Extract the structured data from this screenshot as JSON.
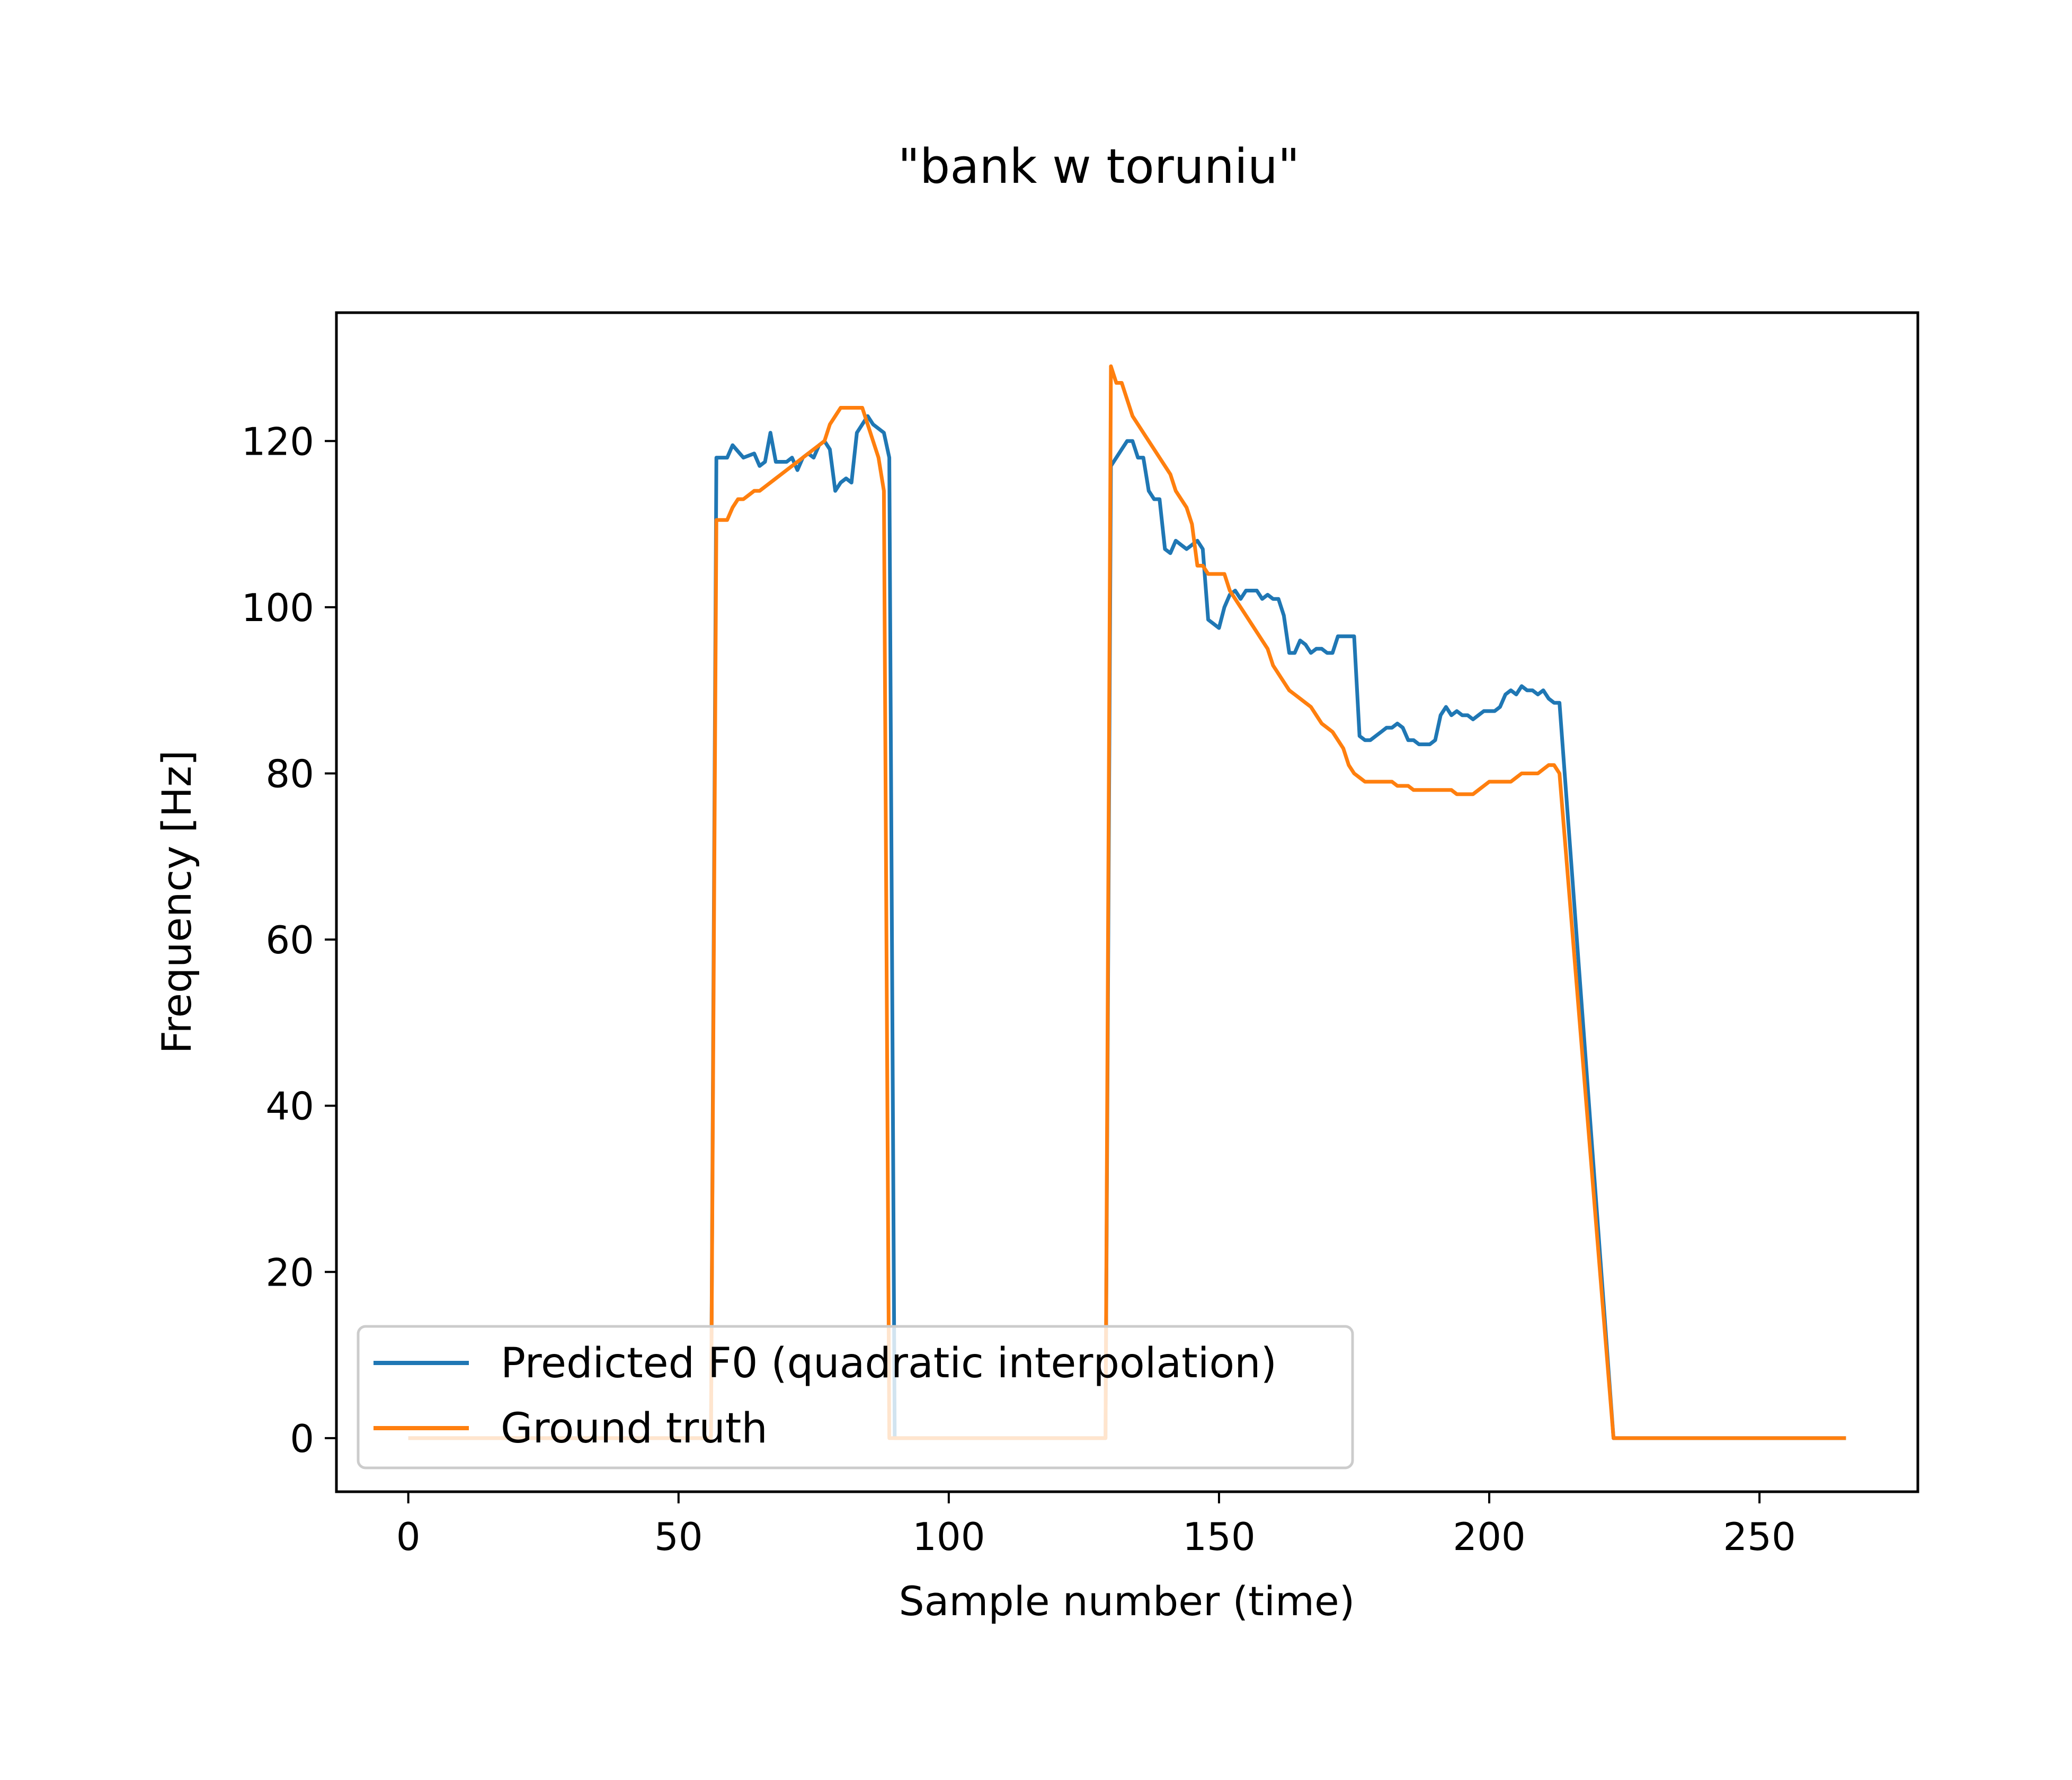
{
  "chart_data": {
    "type": "line",
    "title": "\"bank w toruniu\"",
    "xlabel": "Sample number (time)",
    "ylabel": "Frequency [Hz]",
    "xlim": [
      -13.3,
      279.3
    ],
    "ylim": [
      -6.45,
      135.45
    ],
    "xticks": [
      0,
      50,
      100,
      150,
      200,
      250
    ],
    "yticks": [
      0,
      20,
      40,
      60,
      80,
      100,
      120
    ],
    "grid": false,
    "legend_position": "lower left",
    "series": [
      {
        "name": "Predicted F0 (quadratic interpolation)",
        "color": "#1f77b4",
        "points": [
          [
            0,
            0
          ],
          [
            56,
            0
          ],
          [
            57,
            118
          ],
          [
            59,
            118
          ],
          [
            60,
            119.5
          ],
          [
            62,
            118
          ],
          [
            64,
            118.5
          ],
          [
            65,
            117
          ],
          [
            66,
            117.5
          ],
          [
            67,
            121
          ],
          [
            68,
            117.5
          ],
          [
            70,
            117.5
          ],
          [
            71,
            118
          ],
          [
            72,
            116.5
          ],
          [
            73,
            118
          ],
          [
            74,
            118.5
          ],
          [
            75,
            118
          ],
          [
            76,
            119.5
          ],
          [
            77,
            120
          ],
          [
            78,
            119
          ],
          [
            79,
            114
          ],
          [
            80,
            115
          ],
          [
            81,
            115.5
          ],
          [
            82,
            115
          ],
          [
            83,
            121
          ],
          [
            84,
            122
          ],
          [
            85,
            123
          ],
          [
            86,
            122
          ],
          [
            88,
            121
          ],
          [
            89,
            118
          ],
          [
            90,
            0
          ],
          [
            129,
            0
          ],
          [
            130,
            117
          ],
          [
            131,
            118
          ],
          [
            132,
            119
          ],
          [
            133,
            120
          ],
          [
            134,
            120
          ],
          [
            135,
            118
          ],
          [
            136,
            118
          ],
          [
            137,
            114
          ],
          [
            138,
            113
          ],
          [
            139,
            113
          ],
          [
            140,
            107
          ],
          [
            141,
            106.5
          ],
          [
            142,
            108
          ],
          [
            143,
            107.5
          ],
          [
            144,
            107
          ],
          [
            145,
            107.5
          ],
          [
            146,
            108
          ],
          [
            147,
            107
          ],
          [
            148,
            98.5
          ],
          [
            149,
            98
          ],
          [
            150,
            97.5
          ],
          [
            151,
            100
          ],
          [
            152,
            101.5
          ],
          [
            153,
            102
          ],
          [
            154,
            101
          ],
          [
            155,
            102
          ],
          [
            156,
            102
          ],
          [
            157,
            102
          ],
          [
            158,
            101
          ],
          [
            159,
            101.5
          ],
          [
            160,
            101
          ],
          [
            161,
            101
          ],
          [
            162,
            99
          ],
          [
            163,
            94.5
          ],
          [
            164,
            94.5
          ],
          [
            165,
            96
          ],
          [
            166,
            95.5
          ],
          [
            167,
            94.5
          ],
          [
            168,
            95
          ],
          [
            169,
            95
          ],
          [
            170,
            94.5
          ],
          [
            171,
            94.5
          ],
          [
            172,
            96.5
          ],
          [
            173,
            96.5
          ],
          [
            174,
            96.5
          ],
          [
            175,
            96.5
          ],
          [
            176,
            84.5
          ],
          [
            177,
            84
          ],
          [
            178,
            84
          ],
          [
            179,
            84.5
          ],
          [
            180,
            85
          ],
          [
            181,
            85.5
          ],
          [
            182,
            85.5
          ],
          [
            183,
            86
          ],
          [
            184,
            85.5
          ],
          [
            185,
            84
          ],
          [
            186,
            84
          ],
          [
            187,
            83.5
          ],
          [
            188,
            83.5
          ],
          [
            189,
            83.5
          ],
          [
            190,
            84
          ],
          [
            191,
            87
          ],
          [
            192,
            88
          ],
          [
            193,
            87
          ],
          [
            194,
            87.5
          ],
          [
            195,
            87
          ],
          [
            196,
            87
          ],
          [
            197,
            86.5
          ],
          [
            198,
            87
          ],
          [
            199,
            87.5
          ],
          [
            200,
            87.5
          ],
          [
            201,
            87.5
          ],
          [
            202,
            88
          ],
          [
            203,
            89.5
          ],
          [
            204,
            90
          ],
          [
            205,
            89.5
          ],
          [
            206,
            90.5
          ],
          [
            207,
            90
          ],
          [
            208,
            90
          ],
          [
            209,
            89.5
          ],
          [
            210,
            90
          ],
          [
            211,
            89
          ],
          [
            212,
            88.5
          ],
          [
            213,
            88.5
          ],
          [
            223,
            0
          ],
          [
            266,
            0
          ]
        ]
      },
      {
        "name": "Ground truth",
        "color": "#ff7f0e",
        "points": [
          [
            0,
            0
          ],
          [
            56,
            0
          ],
          [
            57,
            110.5
          ],
          [
            58,
            110.5
          ],
          [
            59,
            110.5
          ],
          [
            60,
            112
          ],
          [
            61,
            113
          ],
          [
            62,
            113
          ],
          [
            63,
            113.5
          ],
          [
            64,
            114
          ],
          [
            65,
            114
          ],
          [
            66,
            114.5
          ],
          [
            67,
            115
          ],
          [
            68,
            115.5
          ],
          [
            69,
            116
          ],
          [
            70,
            116.5
          ],
          [
            71,
            117
          ],
          [
            72,
            117.5
          ],
          [
            73,
            118
          ],
          [
            74,
            118.5
          ],
          [
            75,
            119
          ],
          [
            76,
            119.5
          ],
          [
            77,
            120
          ],
          [
            78,
            122
          ],
          [
            79,
            123
          ],
          [
            80,
            124
          ],
          [
            81,
            124
          ],
          [
            82,
            124
          ],
          [
            83,
            124
          ],
          [
            84,
            124
          ],
          [
            85,
            122
          ],
          [
            86,
            120
          ],
          [
            87,
            118
          ],
          [
            88,
            114
          ],
          [
            89,
            0
          ],
          [
            129,
            0
          ],
          [
            130,
            129
          ],
          [
            131,
            127
          ],
          [
            132,
            127
          ],
          [
            133,
            125
          ],
          [
            134,
            123
          ],
          [
            135,
            122
          ],
          [
            136,
            121
          ],
          [
            137,
            120
          ],
          [
            138,
            119
          ],
          [
            139,
            118
          ],
          [
            140,
            117
          ],
          [
            141,
            116
          ],
          [
            142,
            114
          ],
          [
            143,
            113
          ],
          [
            144,
            112
          ],
          [
            145,
            110
          ],
          [
            146,
            105
          ],
          [
            147,
            105
          ],
          [
            148,
            104
          ],
          [
            149,
            104
          ],
          [
            150,
            104
          ],
          [
            151,
            104
          ],
          [
            152,
            102
          ],
          [
            153,
            101
          ],
          [
            154,
            100
          ],
          [
            155,
            99
          ],
          [
            156,
            98
          ],
          [
            157,
            97
          ],
          [
            158,
            96
          ],
          [
            159,
            95
          ],
          [
            160,
            93
          ],
          [
            161,
            92
          ],
          [
            162,
            91
          ],
          [
            163,
            90
          ],
          [
            164,
            89.5
          ],
          [
            165,
            89
          ],
          [
            166,
            88.5
          ],
          [
            167,
            88
          ],
          [
            168,
            87
          ],
          [
            169,
            86
          ],
          [
            170,
            85.5
          ],
          [
            171,
            85
          ],
          [
            172,
            84
          ],
          [
            173,
            83
          ],
          [
            174,
            81
          ],
          [
            175,
            80
          ],
          [
            176,
            79.5
          ],
          [
            177,
            79
          ],
          [
            178,
            79
          ],
          [
            179,
            79
          ],
          [
            180,
            79
          ],
          [
            181,
            79
          ],
          [
            182,
            79
          ],
          [
            183,
            78.5
          ],
          [
            184,
            78.5
          ],
          [
            185,
            78.5
          ],
          [
            186,
            78
          ],
          [
            187,
            78
          ],
          [
            188,
            78
          ],
          [
            189,
            78
          ],
          [
            190,
            78
          ],
          [
            191,
            78
          ],
          [
            192,
            78
          ],
          [
            193,
            78
          ],
          [
            194,
            77.5
          ],
          [
            195,
            77.5
          ],
          [
            196,
            77.5
          ],
          [
            197,
            77.5
          ],
          [
            198,
            78
          ],
          [
            199,
            78.5
          ],
          [
            200,
            79
          ],
          [
            201,
            79
          ],
          [
            202,
            79
          ],
          [
            203,
            79
          ],
          [
            204,
            79
          ],
          [
            205,
            79.5
          ],
          [
            206,
            80
          ],
          [
            207,
            80
          ],
          [
            208,
            80
          ],
          [
            209,
            80
          ],
          [
            210,
            80.5
          ],
          [
            211,
            81
          ],
          [
            212,
            81
          ],
          [
            213,
            80
          ],
          [
            223,
            0
          ],
          [
            266,
            0
          ]
        ]
      }
    ]
  }
}
